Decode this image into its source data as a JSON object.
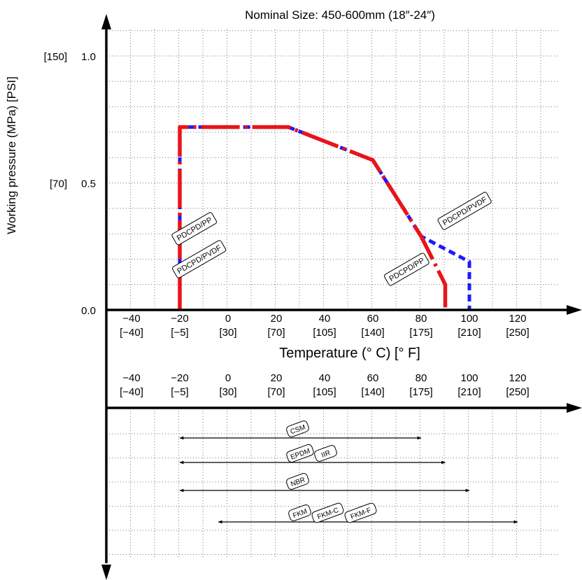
{
  "chart_data": {
    "type": "line",
    "title": "Nominal Size: 450-600mm (18″-24″)",
    "ylabel": "Working pressure (MPa) [PSI]",
    "xlabel": "Temperature (°  C) [°  F]",
    "xlim": [
      -50,
      130
    ],
    "ylim": [
      0,
      1.1
    ],
    "y_ticks": [
      {
        "value": 0.0,
        "label": "0.0",
        "psi": ""
      },
      {
        "value": 0.5,
        "label": "0.5",
        "psi": "[70]"
      },
      {
        "value": 1.0,
        "label": "1.0",
        "psi": "[150]"
      }
    ],
    "x_ticks": [
      {
        "value": -40,
        "c": "−40",
        "f": "[−40]"
      },
      {
        "value": -20,
        "c": "−20",
        "f": "[−5]"
      },
      {
        "value": 0,
        "c": "0",
        "f": "[30]"
      },
      {
        "value": 20,
        "c": "20",
        "f": "[70]"
      },
      {
        "value": 40,
        "c": "40",
        "f": "[105]"
      },
      {
        "value": 60,
        "c": "60",
        "f": "[140]"
      },
      {
        "value": 80,
        "c": "80",
        "f": "[175]"
      },
      {
        "value": 100,
        "c": "100",
        "f": "[210]"
      },
      {
        "value": 120,
        "c": "120",
        "f": "[250]"
      }
    ],
    "series": [
      {
        "name": "PDCPD/PVDF",
        "color": "#1a1aff",
        "style": "dashed",
        "points": [
          [
            -20,
            0
          ],
          [
            -20,
            0.72
          ],
          [
            25,
            0.72
          ],
          [
            60,
            0.59
          ],
          [
            80,
            0.29
          ],
          [
            100,
            0.19
          ],
          [
            100,
            0
          ]
        ]
      },
      {
        "name": "PDCPD/PP",
        "color": "#e8141c",
        "style": "dash-dot",
        "points": [
          [
            -20,
            0
          ],
          [
            -20,
            0.72
          ],
          [
            25,
            0.72
          ],
          [
            60,
            0.59
          ],
          [
            80,
            0.29
          ],
          [
            90,
            0.1
          ],
          [
            90,
            0
          ]
        ]
      }
    ],
    "series_labels": [
      {
        "text": "PDCPD/PP",
        "x": -14,
        "y": 0.32,
        "series": 1
      },
      {
        "text": "PDCPD/PVDF",
        "x": -12,
        "y": 0.2,
        "series": 0
      },
      {
        "text": "PDCPD/PP",
        "x": 74,
        "y": 0.16,
        "series": 1
      },
      {
        "text": "PDCPD/PVDF",
        "x": 98,
        "y": 0.39,
        "series": 0
      }
    ],
    "seal_ranges": [
      {
        "labels": [
          "CSM"
        ],
        "min": -20,
        "max": 80
      },
      {
        "labels": [
          "EPDM",
          "IIR"
        ],
        "min": -20,
        "max": 90
      },
      {
        "labels": [
          "NBR"
        ],
        "min": -20,
        "max": 100
      },
      {
        "labels": [
          "FKM",
          "FKM-C",
          "FKM-F"
        ],
        "min": -4,
        "max": 120
      }
    ],
    "grid": true
  }
}
